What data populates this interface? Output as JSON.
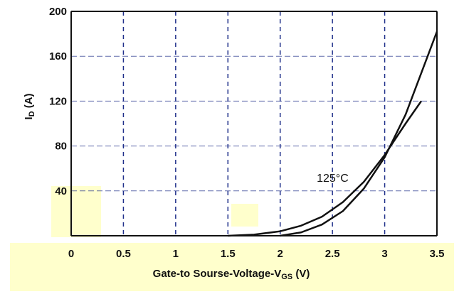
{
  "chart_data": {
    "type": "line",
    "xlabel": "Gate-to  Sourse-Voltage-V",
    "xlabel_sub": "GS",
    "xlabel_unit": " (V)",
    "ylabel": "I",
    "ylabel_sub": "D",
    "ylabel_unit": " (A)",
    "xlim": [
      0,
      3.5
    ],
    "ylim": [
      0,
      200
    ],
    "x_ticks": [
      "0",
      "0.5",
      "1",
      "1.5",
      "2",
      "2.5",
      "3",
      "3.5"
    ],
    "y_ticks": [
      "40",
      "80",
      "120",
      "160",
      "200"
    ],
    "grid": true,
    "series": [
      {
        "name": "125°C",
        "x": [
          1.5,
          1.75,
          2.0,
          2.2,
          2.4,
          2.6,
          2.8,
          3.0,
          3.2,
          3.35
        ],
        "y": [
          0,
          1,
          4,
          9,
          17,
          30,
          48,
          72,
          100,
          120
        ]
      },
      {
        "name": "",
        "x": [
          2.0,
          2.2,
          2.4,
          2.6,
          2.8,
          3.0,
          3.2,
          3.35,
          3.5
        ],
        "y": [
          0,
          3,
          10,
          22,
          42,
          70,
          108,
          145,
          182
        ]
      }
    ],
    "annotations": [
      {
        "text": "125°C",
        "x": 2.35,
        "y": 48
      }
    ],
    "colors": {
      "curve": "#111111",
      "grid": "#1f2f8a",
      "highlight": "#ffffcc"
    }
  }
}
